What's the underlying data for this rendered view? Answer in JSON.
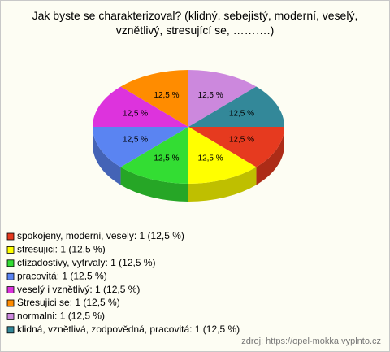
{
  "chart_data": {
    "type": "pie",
    "title": "Jak byste se charakterizoval? (klidný, sebejistý, moderní, veselý, vznětlivý, stresující se, ……….)",
    "categories": [
      "spokojeny, moderni, vesely: 1 (12,5 %)",
      "stresujici: 1 (12,5 %)",
      "ctizadostivy, vytrvaly: 1 (12,5 %)",
      "pracovitá: 1 (12,5 %)",
      "veselý i vznětlivý: 1 (12,5 %)",
      "Stresujici se: 1 (12,5 %)",
      "normalni: 1 (12,5 %)",
      "klidná, vznětlivá, zodpovědná, pracovitá: 1 (12,5 %)"
    ],
    "values": [
      12.5,
      12.5,
      12.5,
      12.5,
      12.5,
      12.5,
      12.5,
      12.5
    ],
    "value_labels": [
      "12,5 %",
      "12,5 %",
      "12,5 %",
      "12,5 %",
      "12,5 %",
      "12,5 %",
      "12,5 %",
      "12,5 %"
    ],
    "colors": [
      "#e63a1f",
      "#ffff00",
      "#33dd33",
      "#5a84f2",
      "#dd33dd",
      "#ff8c00",
      "#cc88dd",
      "#338899"
    ],
    "source": "zdroj: https://opel-mokka.vyplnto.cz"
  }
}
